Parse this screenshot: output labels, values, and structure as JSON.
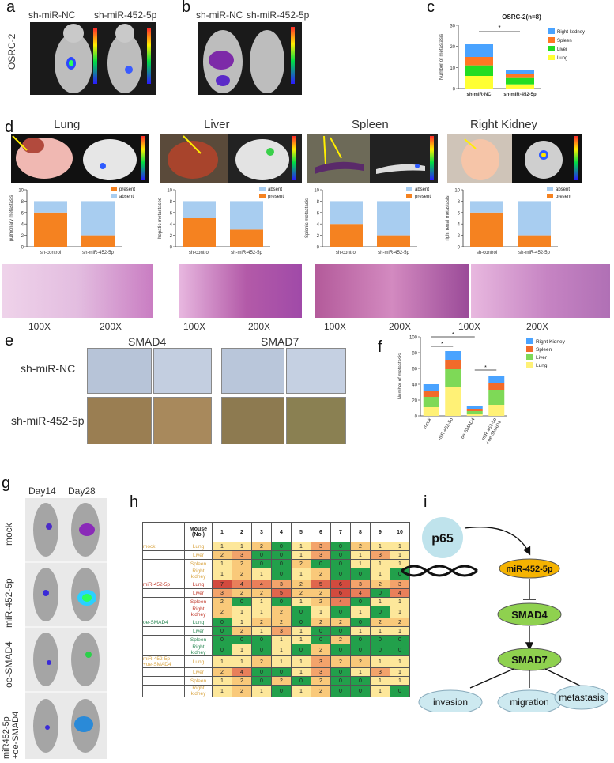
{
  "panels": {
    "a": {
      "letter": "a",
      "left_label": "sh-miR-NC",
      "right_label": "sh-miR-452-5p",
      "row_label": "OSRC-2"
    },
    "b": {
      "letter": "b",
      "left_label": "sh-miR-NC",
      "right_label": "sh-miR-452-5p"
    },
    "c": {
      "letter": "c"
    },
    "d": {
      "letter": "d",
      "organs": [
        "Lung",
        "Liver",
        "Spleen",
        "Right Kidney"
      ],
      "mag": [
        "100X",
        "200X",
        "100X",
        "200X",
        "100X",
        "200X",
        "100X",
        "200X"
      ]
    },
    "e": {
      "letter": "e",
      "cols": [
        "SMAD4",
        "SMAD7"
      ],
      "rows": [
        "sh-miR-NC",
        "sh-miR-452-5p"
      ]
    },
    "f": {
      "letter": "f"
    },
    "g": {
      "letter": "g",
      "days": [
        "Day14",
        "Day28"
      ],
      "groups": [
        "mock",
        "miR-452-5p",
        "oe-SMAD4",
        "miR452-5p\n+oe-SMAD4"
      ]
    },
    "h": {
      "letter": "h",
      "header_mouse": "Mouse\n(No.)",
      "cols": [
        "1",
        "2",
        "3",
        "4",
        "5",
        "6",
        "7",
        "8",
        "9",
        "10"
      ]
    },
    "i": {
      "letter": "i",
      "nodes": {
        "p65": "p65",
        "mir": "miR-452-5p",
        "smad4": "SMAD4",
        "smad7": "SMAD7",
        "invasion": "invasion",
        "migration": "migration",
        "metastasis": "metastasis"
      }
    }
  },
  "chart_data": [
    {
      "id": "c",
      "type": "bar",
      "stacked": true,
      "title": "OSRC-2(n=8)",
      "ylabel": "Number of metastasis",
      "ylim": [
        0,
        30
      ],
      "yticks": [
        0,
        10,
        20,
        30
      ],
      "categories": [
        "sh-miR-NC",
        "sh-miR-452-5p"
      ],
      "series": [
        {
          "name": "Lung",
          "color": "#ffff33",
          "values": [
            6,
            2
          ]
        },
        {
          "name": "Liver",
          "color": "#22dd22",
          "values": [
            5,
            3
          ]
        },
        {
          "name": "Spleen",
          "color": "#ff7722",
          "values": [
            4,
            2
          ]
        },
        {
          "name": "Right kedney",
          "color": "#4aa3ff",
          "values": [
            6,
            2
          ]
        }
      ],
      "annotation": "*"
    },
    {
      "id": "d1",
      "type": "bar",
      "stacked": true,
      "ylabel": "pulmonary metastasis",
      "ylim": [
        0,
        10
      ],
      "yticks": [
        0,
        2,
        4,
        6,
        8,
        10
      ],
      "categories": [
        "sh-control",
        "sh-miR-452-5p"
      ],
      "series": [
        {
          "name": "present",
          "color": "#f58220",
          "values": [
            6,
            2
          ]
        },
        {
          "name": "absent",
          "color": "#a8cdf0",
          "values": [
            2,
            6
          ]
        }
      ]
    },
    {
      "id": "d2",
      "type": "bar",
      "stacked": true,
      "ylabel": "hepatic metastases",
      "ylim": [
        0,
        10
      ],
      "yticks": [
        0,
        2,
        4,
        6,
        8,
        10
      ],
      "categories": [
        "sh-control",
        "sh-miR-452-5p"
      ],
      "series": [
        {
          "name": "present",
          "color": "#f58220",
          "values": [
            5,
            3
          ]
        },
        {
          "name": "absent",
          "color": "#a8cdf0",
          "values": [
            3,
            5
          ]
        }
      ],
      "legend_order": [
        "absent",
        "present"
      ]
    },
    {
      "id": "d3",
      "type": "bar",
      "stacked": true,
      "ylabel": "Splenic metastasis",
      "ylim": [
        0,
        10
      ],
      "yticks": [
        0,
        2,
        4,
        6,
        8,
        10
      ],
      "categories": [
        "sh-control",
        "sh-miR-452-5p"
      ],
      "series": [
        {
          "name": "present",
          "color": "#f58220",
          "values": [
            4,
            2
          ]
        },
        {
          "name": "absent",
          "color": "#a8cdf0",
          "values": [
            4,
            6
          ]
        }
      ],
      "legend_order": [
        "absent",
        "present"
      ]
    },
    {
      "id": "d4",
      "type": "bar",
      "stacked": true,
      "ylabel": "right renal metastasis",
      "ylim": [
        0,
        10
      ],
      "yticks": [
        0,
        2,
        4,
        6,
        8,
        10
      ],
      "categories": [
        "sh-control",
        "sh-miR-452-5p"
      ],
      "series": [
        {
          "name": "present",
          "color": "#f58220",
          "values": [
            6,
            2
          ]
        },
        {
          "name": "absent",
          "color": "#a8cdf0",
          "values": [
            2,
            6
          ]
        }
      ],
      "legend_order": [
        "absent",
        "present"
      ]
    },
    {
      "id": "f",
      "type": "bar",
      "stacked": true,
      "ylabel": "Number of metastasis",
      "ylim": [
        0,
        100
      ],
      "yticks": [
        0,
        20,
        40,
        60,
        80,
        100
      ],
      "categories": [
        "mock",
        "miR-452-5p",
        "oe-SMAD4",
        "miR-452-5p\n+oe-SMAD4"
      ],
      "series": [
        {
          "name": "Lung",
          "color": "#fff176",
          "values": [
            11,
            36,
            3,
            14
          ]
        },
        {
          "name": "Liver",
          "color": "#7ed957",
          "values": [
            13,
            23,
            3,
            19
          ]
        },
        {
          "name": "Spleen",
          "color": "#f26b2a",
          "values": [
            8,
            12,
            3,
            9
          ]
        },
        {
          "name": "Right Kidney",
          "color": "#4aa3ff",
          "values": [
            8,
            11,
            3,
            8
          ]
        }
      ],
      "annotations": [
        "*",
        "*",
        "*"
      ]
    },
    {
      "id": "h",
      "type": "heatmap",
      "columns": [
        "1",
        "2",
        "3",
        "4",
        "5",
        "6",
        "7",
        "8",
        "9",
        "10"
      ],
      "rows": [
        {
          "group": "mock",
          "organ": "Lung",
          "values": [
            1,
            1,
            2,
            0,
            1,
            3,
            0,
            2,
            1,
            1
          ]
        },
        {
          "group": "",
          "organ": "Liver",
          "values": [
            2,
            3,
            0,
            0,
            1,
            3,
            0,
            1,
            3,
            1
          ]
        },
        {
          "group": "",
          "organ": "Spleen",
          "values": [
            1,
            2,
            0,
            0,
            2,
            0,
            0,
            1,
            1,
            1
          ]
        },
        {
          "group": "",
          "organ": "Right kidney",
          "values": [
            1,
            2,
            1,
            0,
            1,
            2,
            0,
            0,
            1,
            0
          ]
        },
        {
          "group": "miR-452-5p",
          "organ": "Lung",
          "values": [
            7,
            4,
            4,
            3,
            2,
            5,
            6,
            3,
            2,
            3
          ]
        },
        {
          "group": "",
          "organ": "Liver",
          "values": [
            3,
            2,
            2,
            5,
            2,
            2,
            6,
            4,
            0,
            4
          ]
        },
        {
          "group": "",
          "organ": "Spleen",
          "values": [
            2,
            0,
            1,
            0,
            1,
            2,
            4,
            0,
            1,
            1
          ]
        },
        {
          "group": "",
          "organ": "Right kidney",
          "values": [
            2,
            1,
            1,
            2,
            0,
            1,
            0,
            1,
            0,
            1
          ]
        },
        {
          "group": "oe-SMAD4",
          "organ": "Lung",
          "values": [
            0,
            1,
            2,
            2,
            0,
            2,
            2,
            0,
            2,
            2
          ]
        },
        {
          "group": "",
          "organ": "Liver",
          "values": [
            0,
            2,
            1,
            3,
            1,
            0,
            0,
            1,
            1,
            1
          ]
        },
        {
          "group": "",
          "organ": "Spleen",
          "values": [
            0,
            0,
            0,
            1,
            1,
            0,
            2,
            0,
            0,
            0
          ]
        },
        {
          "group": "",
          "organ": "Right kidney",
          "values": [
            0,
            1,
            0,
            1,
            0,
            2,
            0,
            0,
            0,
            0
          ]
        },
        {
          "group": "miR-452-5p\n+oe-SMAD4",
          "organ": "Lung",
          "values": [
            1,
            1,
            2,
            1,
            1,
            3,
            2,
            2,
            1,
            1
          ]
        },
        {
          "group": "",
          "organ": "Liver",
          "values": [
            2,
            4,
            0,
            0,
            1,
            3,
            0,
            1,
            3,
            1
          ]
        },
        {
          "group": "",
          "organ": "Spleen",
          "values": [
            1,
            2,
            0,
            2,
            0,
            2,
            0,
            0,
            1,
            1
          ]
        },
        {
          "group": "",
          "organ": "Right kidney",
          "values": [
            1,
            2,
            1,
            0,
            1,
            2,
            0,
            0,
            1,
            0
          ]
        }
      ]
    }
  ]
}
